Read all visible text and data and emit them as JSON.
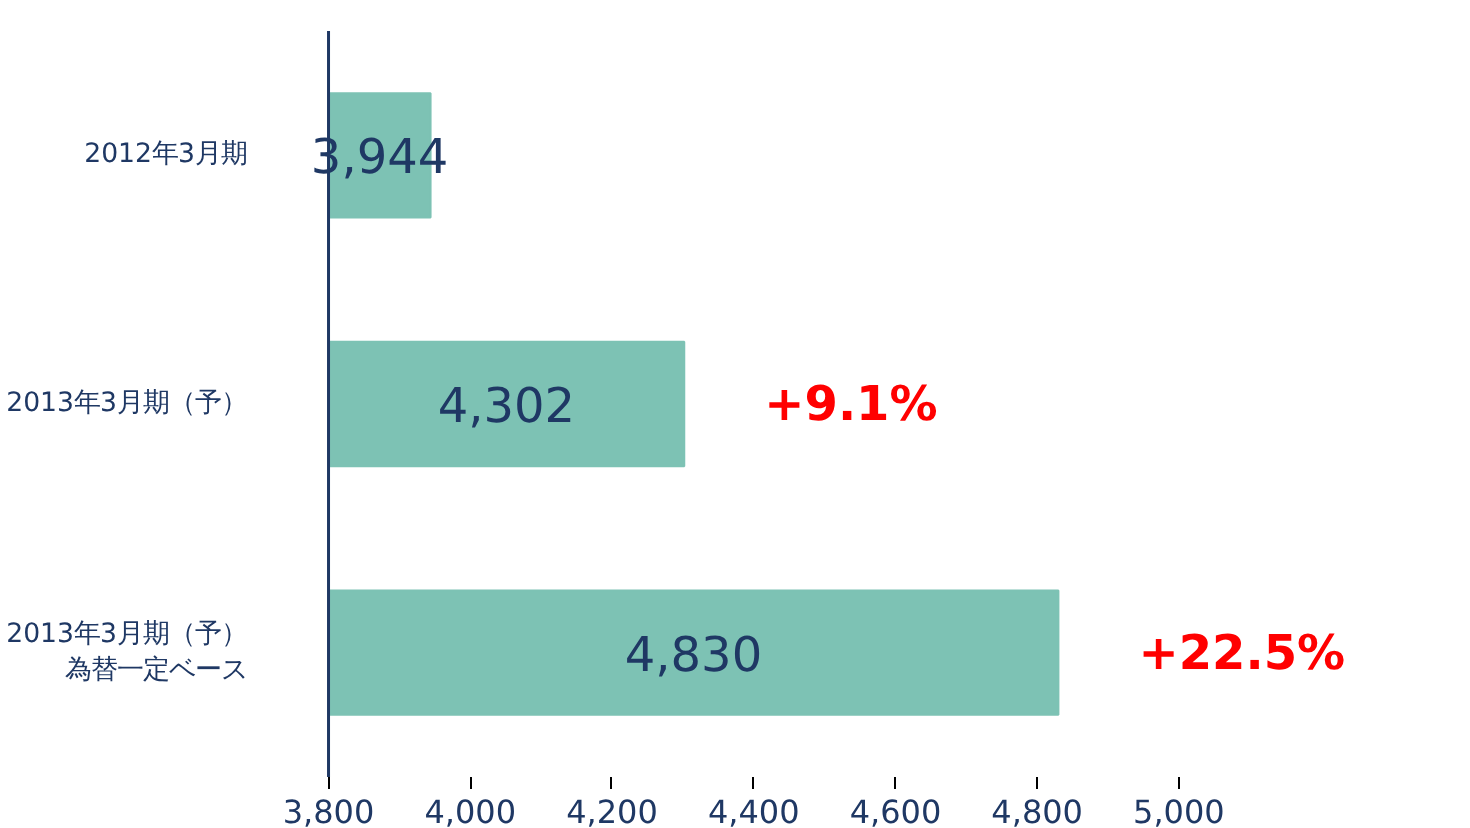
{
  "chart_data": {
    "type": "bar",
    "orientation": "horizontal",
    "categories": [
      "2012年3月期",
      "2013年3月期（予）",
      "2013年3月期（予）為替一定ベース"
    ],
    "values": [
      3944,
      4302,
      4830
    ],
    "color": "#7dc2b4",
    "data_labels": true,
    "value_labels": [
      "3,944",
      "4,302",
      "4,830"
    ],
    "xlim": [
      3800,
      5000
    ],
    "xticks": [
      {
        "value": 3800,
        "label": "3,800"
      },
      {
        "value": 4000,
        "label": "4,000"
      },
      {
        "value": 4200,
        "label": "4,200"
      },
      {
        "value": 4400,
        "label": "4,400"
      },
      {
        "value": 4600,
        "label": "4,600"
      },
      {
        "value": 4800,
        "label": "4,800"
      },
      {
        "value": 5000,
        "label": "5,000"
      }
    ],
    "annotations": [
      {
        "text": "+9.1%",
        "x": 4302,
        "y": "2013年3月期（予）"
      },
      {
        "text": "+22.5%",
        "x": 4830,
        "y": "2013年3月期（予）為替一定ベース"
      }
    ],
    "grid": false
  }
}
